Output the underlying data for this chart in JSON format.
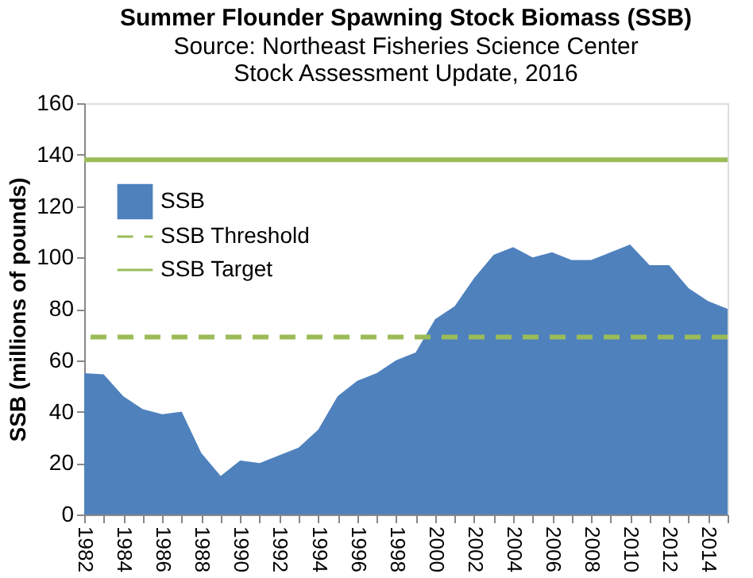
{
  "chart_data": {
    "type": "area",
    "title": "Summer Flounder Spawning Stock Biomass (SSB)",
    "subtitle": "Source: Northeast Fisheries Science Center Stock Assessment Update, 2016",
    "ylabel": "SSB (millions of pounds)",
    "x": [
      1982,
      1983,
      1984,
      1985,
      1986,
      1987,
      1988,
      1989,
      1990,
      1991,
      1992,
      1993,
      1994,
      1995,
      1996,
      1997,
      1998,
      1999,
      2000,
      2001,
      2002,
      2003,
      2004,
      2005,
      2006,
      2007,
      2008,
      2009,
      2010,
      2011,
      2012,
      2013,
      2014,
      2015
    ],
    "series": [
      {
        "name": "SSB",
        "color": "#4f81bd",
        "values": [
          55,
          54.5,
          46,
          41,
          39,
          40,
          24,
          15,
          21,
          20,
          23,
          26,
          33,
          46,
          52,
          55,
          60,
          63,
          76,
          81,
          92,
          101,
          104,
          100,
          102,
          99,
          99,
          102,
          105,
          97,
          97,
          88,
          83,
          80
        ]
      }
    ],
    "ref_lines": [
      {
        "axis": "y",
        "value": 69,
        "label": "SSB Threshold",
        "color": "#9bbb59",
        "line_style": "dashed"
      },
      {
        "axis": "y",
        "value": 138,
        "label": "SSB Target",
        "color": "#9bbb59",
        "line_style": "solid"
      }
    ],
    "xlim": [
      1982,
      2015
    ],
    "xticks": [
      1982,
      {
        "value": 1983,
        "label": null
      },
      1984,
      {
        "value": 1985,
        "label": null
      },
      1986,
      {
        "value": 1987,
        "label": null
      },
      1988,
      {
        "value": 1989,
        "label": null
      },
      1990,
      {
        "value": 1991,
        "label": null
      },
      1992,
      {
        "value": 1993,
        "label": null
      },
      1994,
      {
        "value": 1995,
        "label": null
      },
      1996,
      {
        "value": 1997,
        "label": null
      },
      1998,
      {
        "value": 1999,
        "label": null
      },
      2000,
      {
        "value": 2001,
        "label": null
      },
      2002,
      {
        "value": 2003,
        "label": null
      },
      2004,
      {
        "value": 2005,
        "label": null
      },
      2006,
      {
        "value": 2007,
        "label": null
      },
      2008,
      {
        "value": 2009,
        "label": null
      },
      2010,
      {
        "value": 2011,
        "label": null
      },
      2012,
      {
        "value": 2013,
        "label": null
      },
      2014,
      {
        "value": 2015,
        "label": null
      }
    ],
    "ylim": [
      0,
      160
    ],
    "yticks": [
      0,
      20,
      40,
      60,
      80,
      100,
      120,
      140,
      160
    ],
    "grid": false,
    "legend": "top left"
  }
}
